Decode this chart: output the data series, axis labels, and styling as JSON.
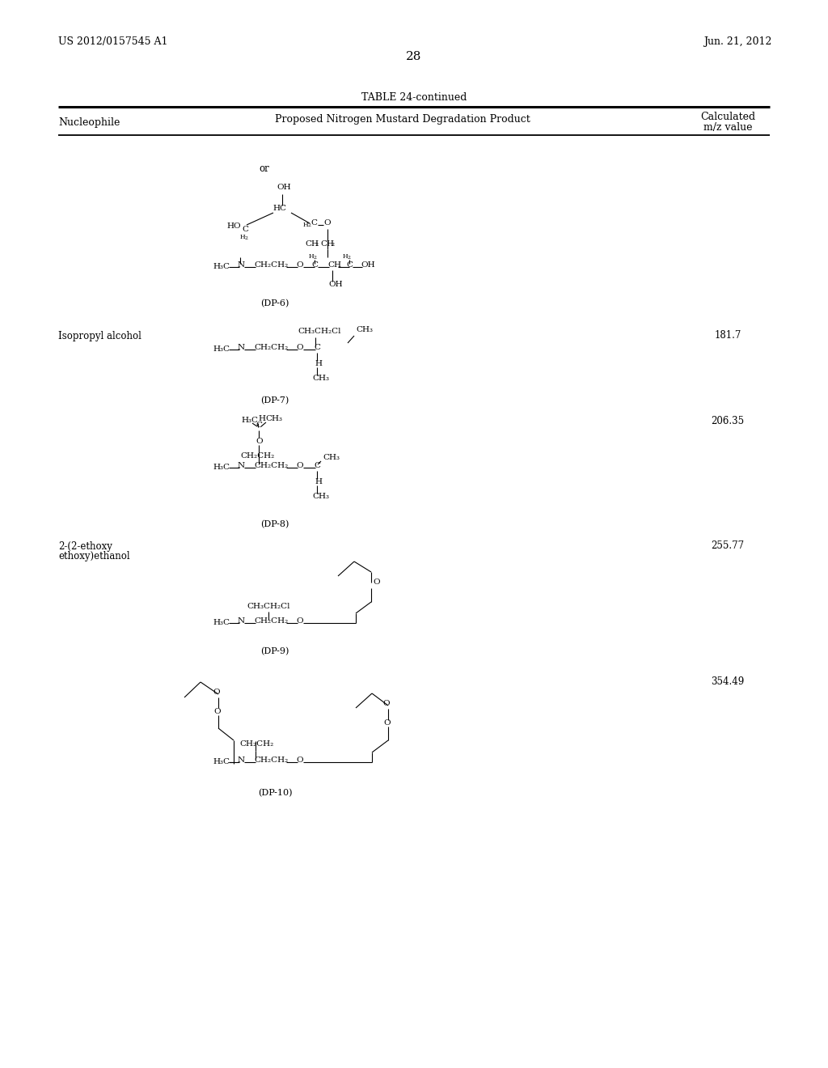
{
  "bg_color": "#ffffff",
  "patent_left": "US 2012/0157545 A1",
  "patent_right": "Jun. 21, 2012",
  "page_number": "28",
  "table_title": "TABLE 24-continued",
  "col1_header": "Nucleophile",
  "col2_header": "Proposed Nitrogen Mustard Degradation Product",
  "col3_header_line1": "Calculated",
  "col3_header_line2": "m/z value",
  "font_size_header": 9,
  "font_size_body": 8.5,
  "font_size_patent": 9,
  "font_size_page": 11,
  "font_size_chem": 7.5,
  "font_size_sub": 5.5
}
